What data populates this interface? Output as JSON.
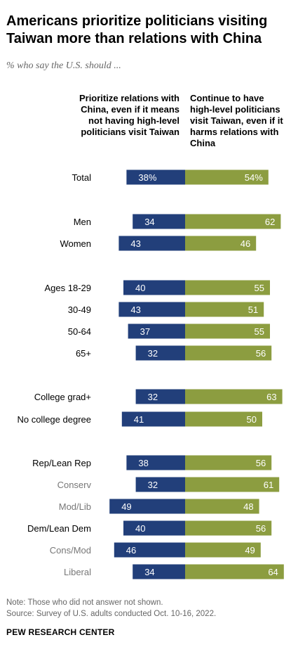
{
  "title": "Americans prioritize politicians visiting Taiwan more than relations with China",
  "subtitle": "% who say the U.S. should ...",
  "note": "Note: Those who did not answer not shown.",
  "source": "Source: Survey of U.S. adults conducted Oct. 10-16, 2022.",
  "brand": "PEW RESEARCH CENTER",
  "colors": {
    "left": "#223f7a",
    "right": "#8c9d40",
    "label": "#000000",
    "sublabel": "#777777"
  },
  "chart_data": {
    "type": "bar",
    "orientation": "horizontal-diverging",
    "series": [
      {
        "name": "Prioritize relations with China, even if it means not having high-level politicians visit Taiwan",
        "values": [
          38,
          34,
          43,
          40,
          43,
          37,
          32,
          32,
          41,
          38,
          32,
          49,
          40,
          46,
          34
        ]
      },
      {
        "name": "Continue to have high-level politicians visit Taiwan, even if it harms relations with China",
        "values": [
          54,
          62,
          46,
          55,
          51,
          55,
          56,
          63,
          50,
          56,
          61,
          48,
          56,
          49,
          64
        ]
      }
    ],
    "categories": [
      "Total",
      "Men",
      "Women",
      "Ages 18-29",
      "30-49",
      "50-64",
      "65+",
      "College grad+",
      "No college degree",
      "Rep/Lean Rep",
      "Conserv",
      "Mod/Lib",
      "Dem/Lean Dem",
      "Cons/Mod",
      "Liberal"
    ],
    "value_labels_left": [
      "38%",
      "34",
      "43",
      "40",
      "43",
      "37",
      "32",
      "32",
      "41",
      "38",
      "32",
      "49",
      "40",
      "46",
      "34"
    ],
    "value_labels_right": [
      "54%",
      "62",
      "46",
      "55",
      "51",
      "55",
      "56",
      "63",
      "50",
      "56",
      "61",
      "48",
      "56",
      "49",
      "64"
    ],
    "subgroup": [
      false,
      false,
      false,
      false,
      false,
      false,
      false,
      false,
      false,
      false,
      true,
      true,
      false,
      true,
      true
    ]
  }
}
